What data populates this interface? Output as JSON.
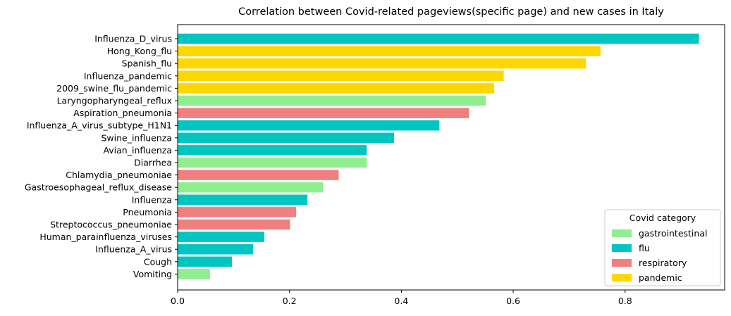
{
  "chart_data": {
    "type": "bar",
    "orientation": "horizontal",
    "title": "Correlation between Covid-related pageviews(specific page) and new cases in Italy",
    "xlabel": "",
    "ylabel": "",
    "xlim": [
      0,
      0.978
    ],
    "xticks": [
      "0.0",
      "0.2",
      "0.4",
      "0.6",
      "0.8"
    ],
    "xtick_values": [
      0,
      0.2,
      0.4,
      0.6,
      0.8
    ],
    "grid": false,
    "legend": {
      "title": "Covid category",
      "placement": "bottom-right",
      "entries": [
        {
          "name": "gastrointestinal",
          "color": "#90ee90"
        },
        {
          "name": "flu",
          "color": "#00c5c1"
        },
        {
          "name": "respiratory",
          "color": "#f08080"
        },
        {
          "name": "pandemic",
          "color": "#ffd700"
        }
      ]
    },
    "bars": [
      {
        "label": "Influenza_D_virus",
        "value": 0.932,
        "category": "flu"
      },
      {
        "label": "Hong_Kong_flu",
        "value": 0.756,
        "category": "pandemic"
      },
      {
        "label": "Spanish_flu",
        "value": 0.73,
        "category": "pandemic"
      },
      {
        "label": "Influenza_pandemic",
        "value": 0.583,
        "category": "pandemic"
      },
      {
        "label": "2009_swine_flu_pandemic",
        "value": 0.566,
        "category": "pandemic"
      },
      {
        "label": "Laryngopharyngeal_reflux",
        "value": 0.551,
        "category": "gastrointestinal"
      },
      {
        "label": "Aspiration_pneumonia",
        "value": 0.521,
        "category": "respiratory"
      },
      {
        "label": "Influenza_A_virus_subtype_H1N1",
        "value": 0.468,
        "category": "flu"
      },
      {
        "label": "Swine_influenza",
        "value": 0.387,
        "category": "flu"
      },
      {
        "label": "Avian_influenza",
        "value": 0.338,
        "category": "flu"
      },
      {
        "label": "Diarrhea",
        "value": 0.338,
        "category": "gastrointestinal"
      },
      {
        "label": "Chlamydia_pneumoniae",
        "value": 0.288,
        "category": "respiratory"
      },
      {
        "label": "Gastroesophageal_reflux_disease",
        "value": 0.26,
        "category": "gastrointestinal"
      },
      {
        "label": "Influenza",
        "value": 0.232,
        "category": "flu"
      },
      {
        "label": "Pneumonia",
        "value": 0.212,
        "category": "respiratory"
      },
      {
        "label": "Streptococcus_pneumoniae",
        "value": 0.201,
        "category": "respiratory"
      },
      {
        "label": "Human_parainfluenza_viruses",
        "value": 0.155,
        "category": "flu"
      },
      {
        "label": "Influenza_A_virus",
        "value": 0.135,
        "category": "flu"
      },
      {
        "label": "Cough",
        "value": 0.097,
        "category": "flu"
      },
      {
        "label": "Vomiting",
        "value": 0.058,
        "category": "gastrointestinal"
      }
    ]
  }
}
